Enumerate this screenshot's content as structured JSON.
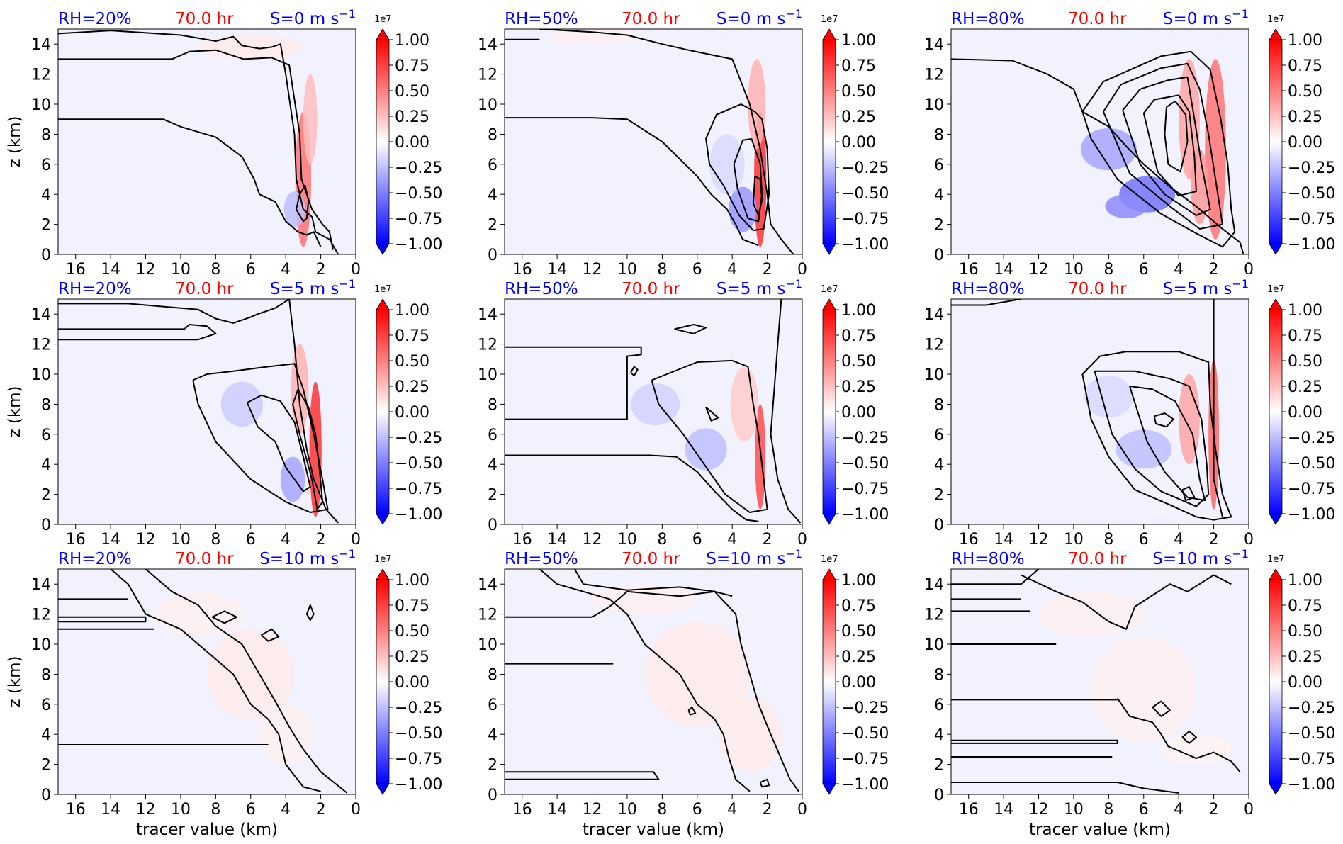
{
  "figure": {
    "time_label": "70.0 hr",
    "xlabel": "tracer value (km)",
    "ylabel": "z (km)",
    "xlim": [
      17,
      0
    ],
    "ylim": [
      0,
      15
    ],
    "x_ticks": [
      "16",
      "14",
      "12",
      "10",
      "8",
      "6",
      "4",
      "2",
      "0"
    ],
    "y_ticks": [
      "0",
      "2",
      "4",
      "6",
      "8",
      "10",
      "12",
      "14"
    ],
    "colorbar": {
      "exponent_label": "1e7",
      "ticks": [
        "1.00",
        "0.75",
        "0.50",
        "0.25",
        "0.00",
        "−0.25",
        "−0.50",
        "−0.75",
        "−1.00"
      ],
      "colormap": "bwr",
      "extend": "both"
    },
    "colors": {
      "rh_label": "#0000ff",
      "time_label": "#ff0000",
      "shear_label": "#0000ff",
      "contour": "#000000",
      "background_fill": "#f2f2ff"
    }
  },
  "chart_data": [
    {
      "type": "heatmap",
      "rh_label": "RH=20%",
      "shear_label": "S=0 m s",
      "shear_exp": "−1"
    },
    {
      "type": "heatmap",
      "rh_label": "RH=50%",
      "shear_label": "S=0 m s",
      "shear_exp": "−1"
    },
    {
      "type": "heatmap",
      "rh_label": "RH=80%",
      "shear_label": "S=0 m s",
      "shear_exp": "−1"
    },
    {
      "type": "heatmap",
      "rh_label": "RH=20%",
      "shear_label": "S=5 m s",
      "shear_exp": "−1"
    },
    {
      "type": "heatmap",
      "rh_label": "RH=50%",
      "shear_label": "S=5 m s",
      "shear_exp": "−1"
    },
    {
      "type": "heatmap",
      "rh_label": "RH=80%",
      "shear_label": "S=5 m s",
      "shear_exp": "−1"
    },
    {
      "type": "heatmap",
      "rh_label": "RH=20%",
      "shear_label": "S=10 m s",
      "shear_exp": "−1"
    },
    {
      "type": "heatmap",
      "rh_label": "RH=50%",
      "shear_label": "S=10 m s",
      "shear_exp": "−1"
    },
    {
      "type": "heatmap",
      "rh_label": "RH=80%",
      "shear_label": "S=10 m s",
      "shear_exp": "−1"
    }
  ]
}
